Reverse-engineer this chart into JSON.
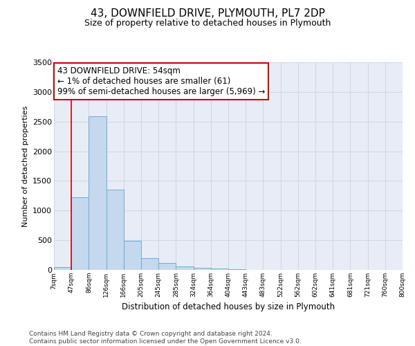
{
  "title": "43, DOWNFIELD DRIVE, PLYMOUTH, PL7 2DP",
  "subtitle": "Size of property relative to detached houses in Plymouth",
  "xlabel": "Distribution of detached houses by size in Plymouth",
  "ylabel": "Number of detached properties",
  "bar_color": "#c5d8ed",
  "bar_edge_color": "#6baed6",
  "bin_labels": [
    "7sqm",
    "47sqm",
    "86sqm",
    "126sqm",
    "166sqm",
    "205sqm",
    "245sqm",
    "285sqm",
    "324sqm",
    "364sqm",
    "404sqm",
    "443sqm",
    "483sqm",
    "522sqm",
    "562sqm",
    "602sqm",
    "641sqm",
    "681sqm",
    "721sqm",
    "760sqm",
    "800sqm"
  ],
  "bar_values": [
    50,
    1230,
    2590,
    1350,
    490,
    200,
    115,
    55,
    30,
    18,
    10,
    5,
    5,
    0,
    0,
    0,
    0,
    0,
    0,
    0
  ],
  "ylim": [
    0,
    3500
  ],
  "yticks": [
    0,
    500,
    1000,
    1500,
    2000,
    2500,
    3000,
    3500
  ],
  "red_line_x": 1.0,
  "annotation_line1": "43 DOWNFIELD DRIVE: 54sqm",
  "annotation_line2": "← 1% of detached houses are smaller (61)",
  "annotation_line3": "99% of semi-detached houses are larger (5,969) →",
  "red_line_color": "#cc0000",
  "annotation_box_edge_color": "#cc0000",
  "grid_color": "#cdd8ea",
  "background_color": "#e8edf5",
  "footer_line1": "Contains HM Land Registry data © Crown copyright and database right 2024.",
  "footer_line2": "Contains public sector information licensed under the Open Government Licence v3.0."
}
